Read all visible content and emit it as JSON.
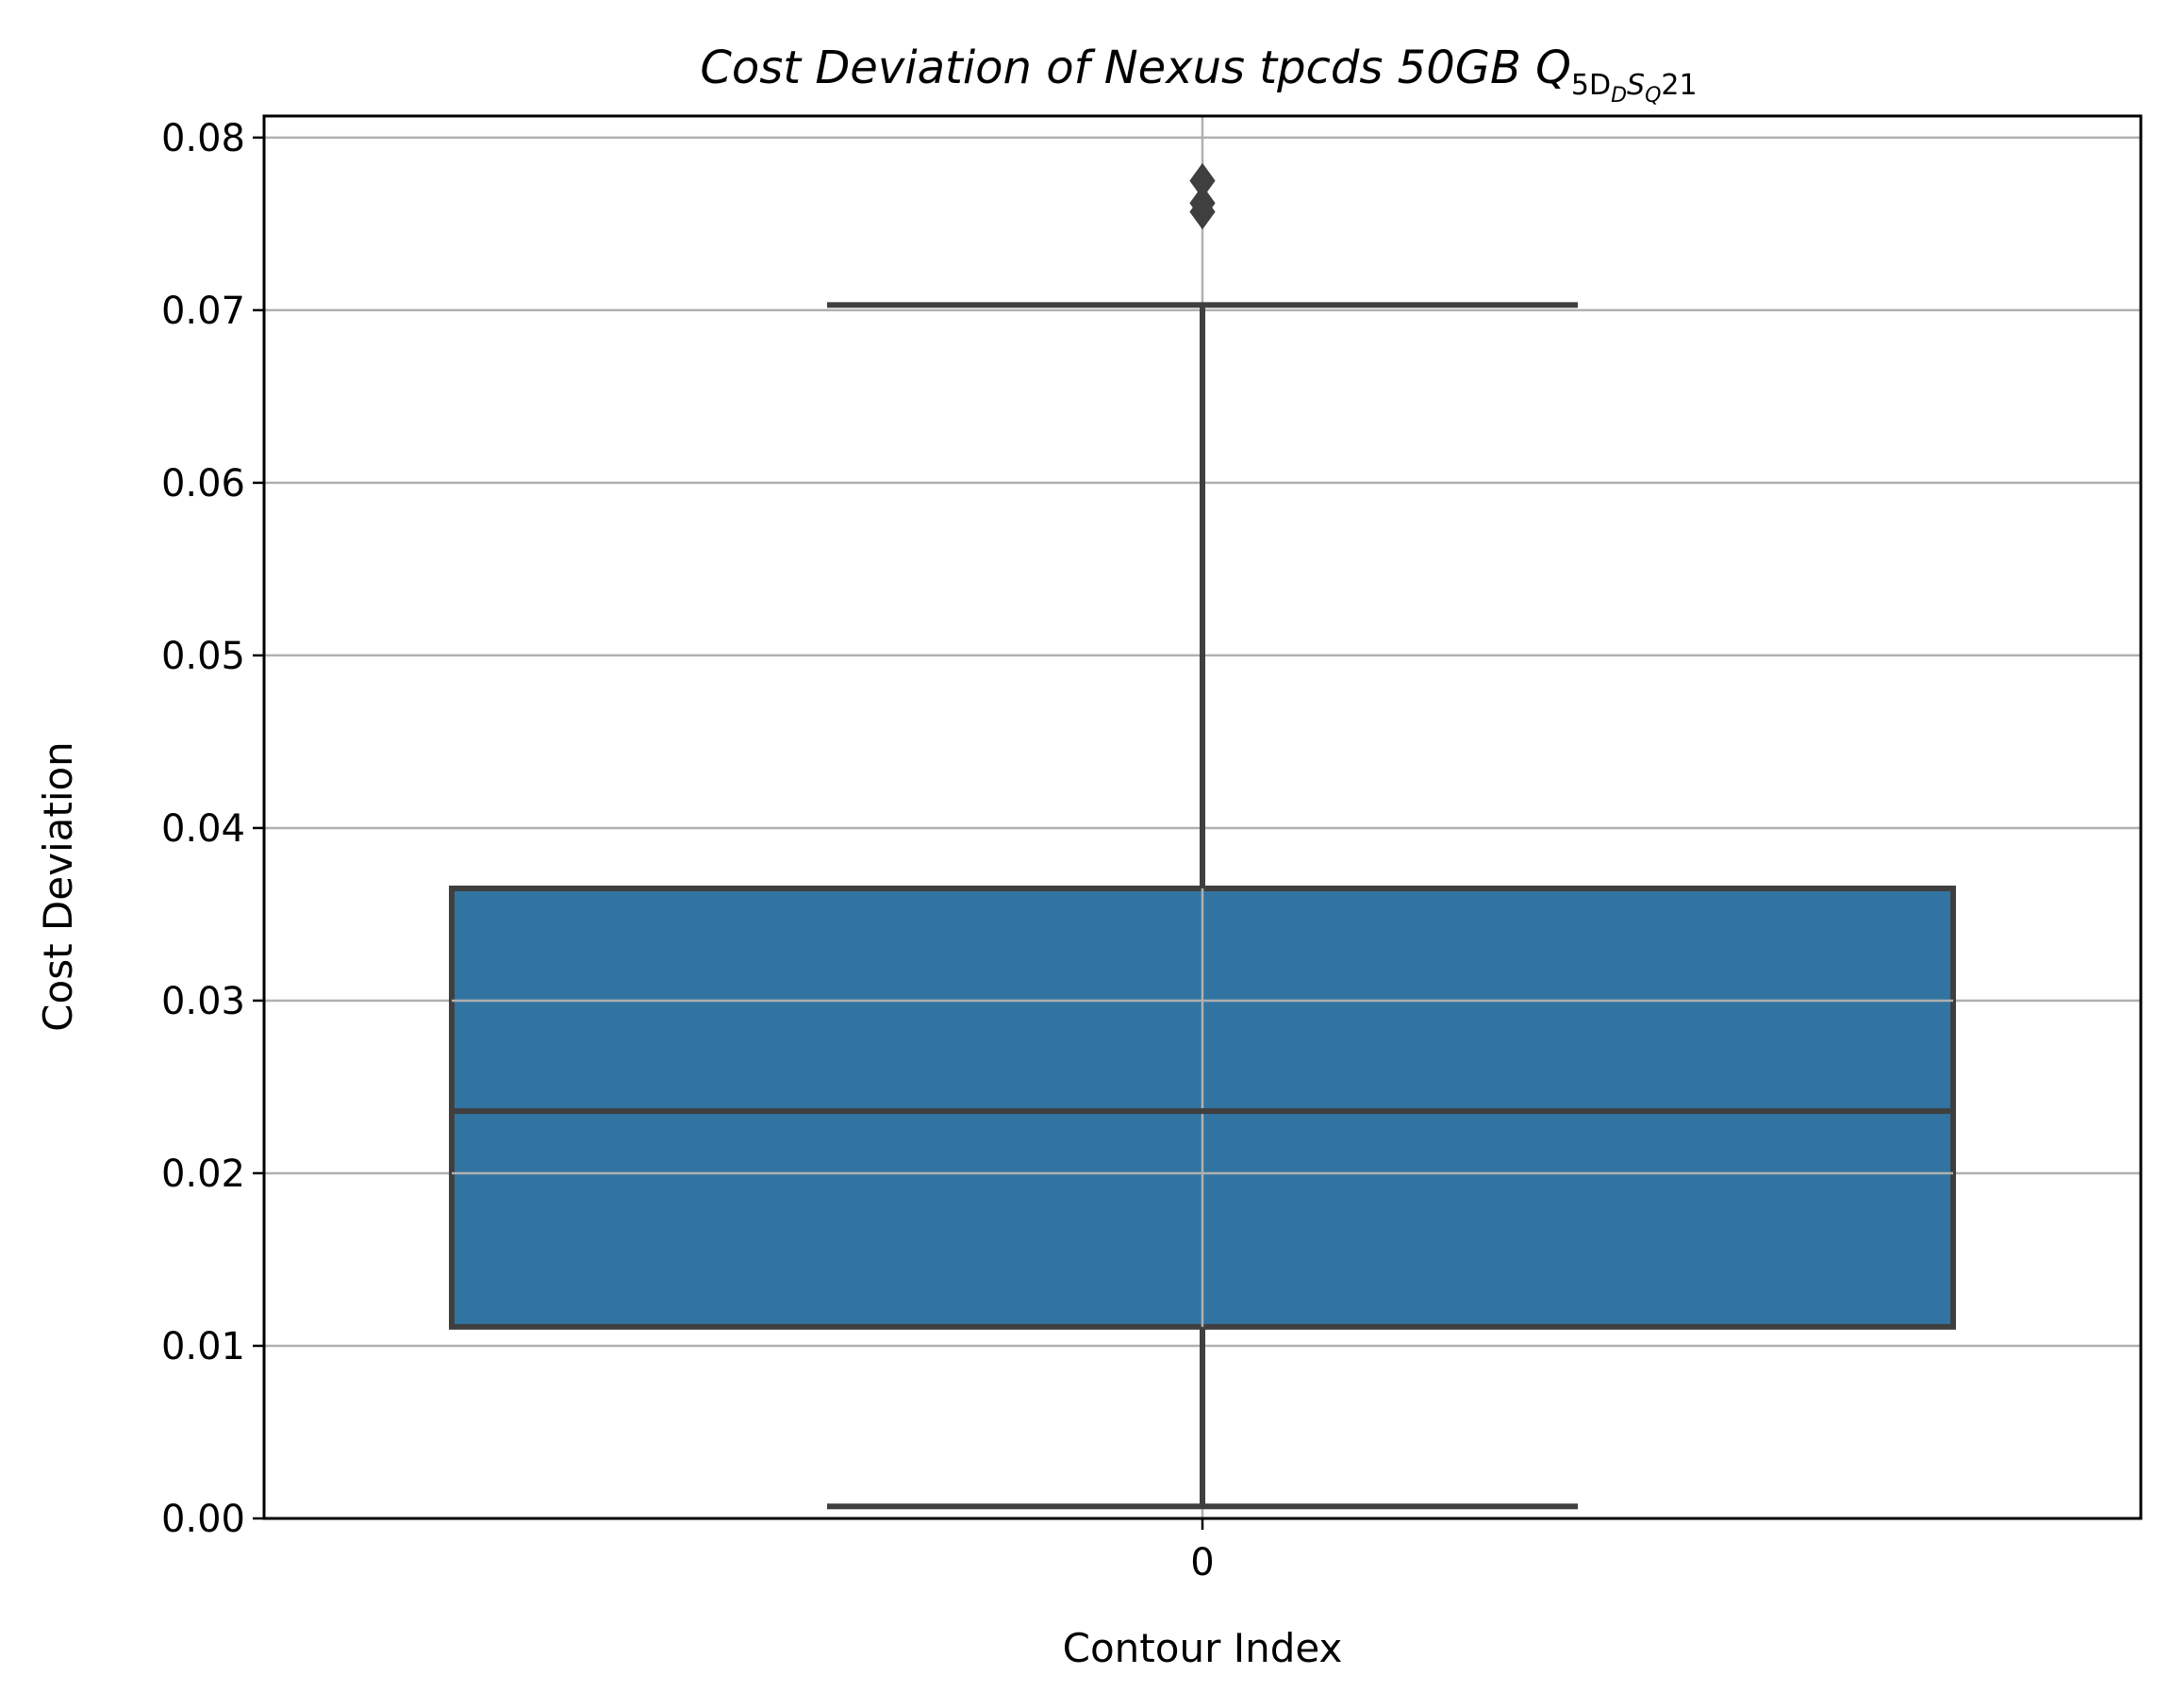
{
  "chart_data": {
    "type": "box",
    "title": {
      "main": "Cost Deviation of Nexus tpcds  50GB  ",
      "q": "Q",
      "sub_1": "5D",
      "sub_2": "D",
      "sub_3": "S",
      "sub_4": "Q",
      "suffix": "21"
    },
    "xlabel": "Contour Index",
    "ylabel": "Cost Deviation",
    "categories": [
      "0"
    ],
    "ylim": [
      0.0,
      0.08
    ],
    "yticks": [
      "0.00",
      "0.01",
      "0.02",
      "0.03",
      "0.04",
      "0.05",
      "0.06",
      "0.07",
      "0.08"
    ],
    "grid": true,
    "boxes": [
      {
        "category": "0",
        "whisker_low": 0.0007,
        "q1": 0.0111,
        "median": 0.0236,
        "q3": 0.0365,
        "whisker_high": 0.0703,
        "outliers": [
          0.0757,
          0.0762,
          0.0775
        ]
      }
    ],
    "colors": {
      "box_fill": "#3274a1",
      "box_edge": "#3f3f3f",
      "grid": "#b0b0b0",
      "axes": "#000000"
    }
  }
}
